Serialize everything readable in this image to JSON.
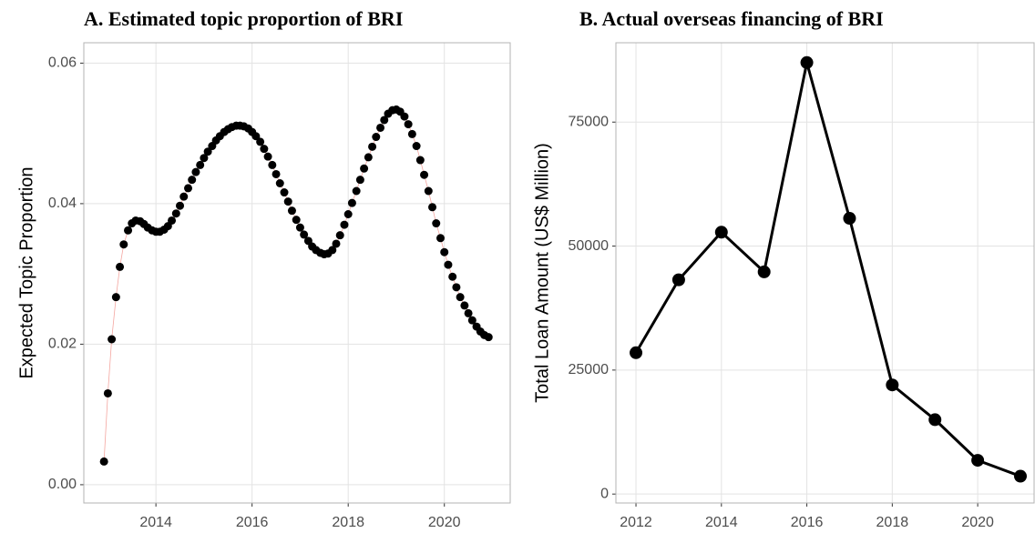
{
  "chart_data": [
    {
      "type": "line",
      "title": "A. Estimated topic proportion of BRI",
      "y_label": "Expected Topic Proportion",
      "x": [
        2012.92,
        2013.0,
        2013.08,
        2013.17,
        2013.25,
        2013.33,
        2013.42,
        2013.5,
        2013.58,
        2013.67,
        2013.75,
        2013.83,
        2013.92,
        2014.0,
        2014.08,
        2014.17,
        2014.25,
        2014.33,
        2014.42,
        2014.5,
        2014.58,
        2014.67,
        2014.75,
        2014.83,
        2014.92,
        2015.0,
        2015.08,
        2015.17,
        2015.25,
        2015.33,
        2015.42,
        2015.5,
        2015.58,
        2015.67,
        2015.75,
        2015.83,
        2015.92,
        2016.0,
        2016.08,
        2016.17,
        2016.25,
        2016.33,
        2016.42,
        2016.5,
        2016.58,
        2016.67,
        2016.75,
        2016.83,
        2016.92,
        2017.0,
        2017.08,
        2017.17,
        2017.25,
        2017.33,
        2017.42,
        2017.5,
        2017.58,
        2017.67,
        2017.75,
        2017.83,
        2017.92,
        2018.0,
        2018.08,
        2018.17,
        2018.25,
        2018.33,
        2018.42,
        2018.5,
        2018.58,
        2018.67,
        2018.75,
        2018.83,
        2018.92,
        2019.0,
        2019.08,
        2019.17,
        2019.25,
        2019.33,
        2019.42,
        2019.5,
        2019.58,
        2019.67,
        2019.75,
        2019.83,
        2019.92,
        2020.0,
        2020.08,
        2020.17,
        2020.25,
        2020.33,
        2020.42,
        2020.5,
        2020.58,
        2020.67,
        2020.75,
        2020.83,
        2020.92
      ],
      "series": [
        {
          "color": "#000000",
          "line_color": "#f4a6a0",
          "line_width": 0.8,
          "marker_radius": 4.5,
          "values": [
            0.0033,
            0.013,
            0.0207,
            0.0267,
            0.031,
            0.0342,
            0.0362,
            0.0372,
            0.0376,
            0.0375,
            0.0371,
            0.0366,
            0.0362,
            0.036,
            0.036,
            0.0363,
            0.0368,
            0.0376,
            0.0386,
            0.0397,
            0.041,
            0.0422,
            0.0434,
            0.0445,
            0.0455,
            0.0465,
            0.0474,
            0.0482,
            0.049,
            0.0496,
            0.0502,
            0.0506,
            0.0509,
            0.0511,
            0.0511,
            0.051,
            0.0507,
            0.0502,
            0.0496,
            0.0488,
            0.0478,
            0.0467,
            0.0455,
            0.0442,
            0.0429,
            0.0416,
            0.0403,
            0.039,
            0.0377,
            0.0366,
            0.0356,
            0.0347,
            0.0339,
            0.0334,
            0.033,
            0.0328,
            0.0329,
            0.0334,
            0.0343,
            0.0355,
            0.037,
            0.0385,
            0.0401,
            0.0418,
            0.0434,
            0.045,
            0.0466,
            0.0481,
            0.0495,
            0.0508,
            0.0519,
            0.0528,
            0.0533,
            0.0534,
            0.0531,
            0.0524,
            0.0513,
            0.0499,
            0.0482,
            0.0462,
            0.0441,
            0.0418,
            0.0395,
            0.0372,
            0.0351,
            0.0331,
            0.0313,
            0.0296,
            0.0281,
            0.0267,
            0.0255,
            0.0244,
            0.0234,
            0.0225,
            0.0218,
            0.0213,
            0.021
          ]
        }
      ],
      "xlim": [
        2012.5,
        2021.37
      ],
      "xticks": [
        2014,
        2016,
        2018,
        2020
      ],
      "ylim": [
        -0.0026,
        0.0629
      ],
      "yticks": [
        {
          "value": 0,
          "label": "0.00"
        },
        {
          "value": 0.02,
          "label": "0.02"
        },
        {
          "value": 0.04,
          "label": "0.04"
        },
        {
          "value": 0.06,
          "label": "0.06"
        }
      ],
      "grid": true
    },
    {
      "type": "line",
      "title": "B. Actual overseas financing of BRI",
      "y_label": "Total Loan Amount (US$ Million)",
      "x": [
        2012,
        2013,
        2014,
        2015,
        2016,
        2017,
        2018,
        2019,
        2020,
        2021
      ],
      "series": [
        {
          "color": "#000000",
          "line_color": "#000000",
          "line_width": 3,
          "marker_radius": 7,
          "values": [
            28500,
            43200,
            52800,
            44800,
            87000,
            55600,
            22000,
            15000,
            6800,
            3600
          ]
        }
      ],
      "xlim": [
        2011.53,
        2021.32
      ],
      "xticks": [
        2012,
        2014,
        2016,
        2018,
        2020
      ],
      "ylim": [
        -1800,
        91000
      ],
      "yticks": [
        0,
        25000,
        50000,
        75000
      ],
      "grid": true
    }
  ]
}
